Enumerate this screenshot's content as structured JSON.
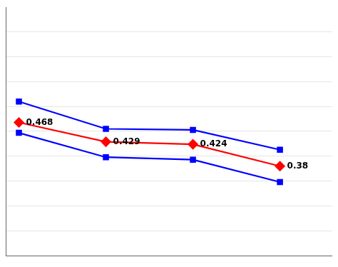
{
  "chart_data": {
    "type": "line",
    "x": [
      0,
      1,
      2,
      3
    ],
    "series": [
      {
        "color": "#0000ff",
        "marker": "square",
        "values": [
          0.51,
          0.455,
          0.453,
          0.413
        ]
      },
      {
        "color": "#0000ff",
        "marker": "square",
        "values": [
          0.447,
          0.398,
          0.393,
          0.348
        ]
      },
      {
        "color": "#ff0000",
        "marker": "diamond",
        "data_labels": true,
        "values": [
          0.468,
          0.429,
          0.424,
          0.38
        ]
      }
    ],
    "xlim": [
      -0.15,
      3.6
    ],
    "ylim": [
      0.2,
      0.7
    ],
    "yticks": [
      0.25,
      0.3,
      0.35,
      0.4,
      0.45,
      0.5,
      0.55,
      0.6,
      0.65
    ],
    "grid": true,
    "tick_labels": false
  }
}
